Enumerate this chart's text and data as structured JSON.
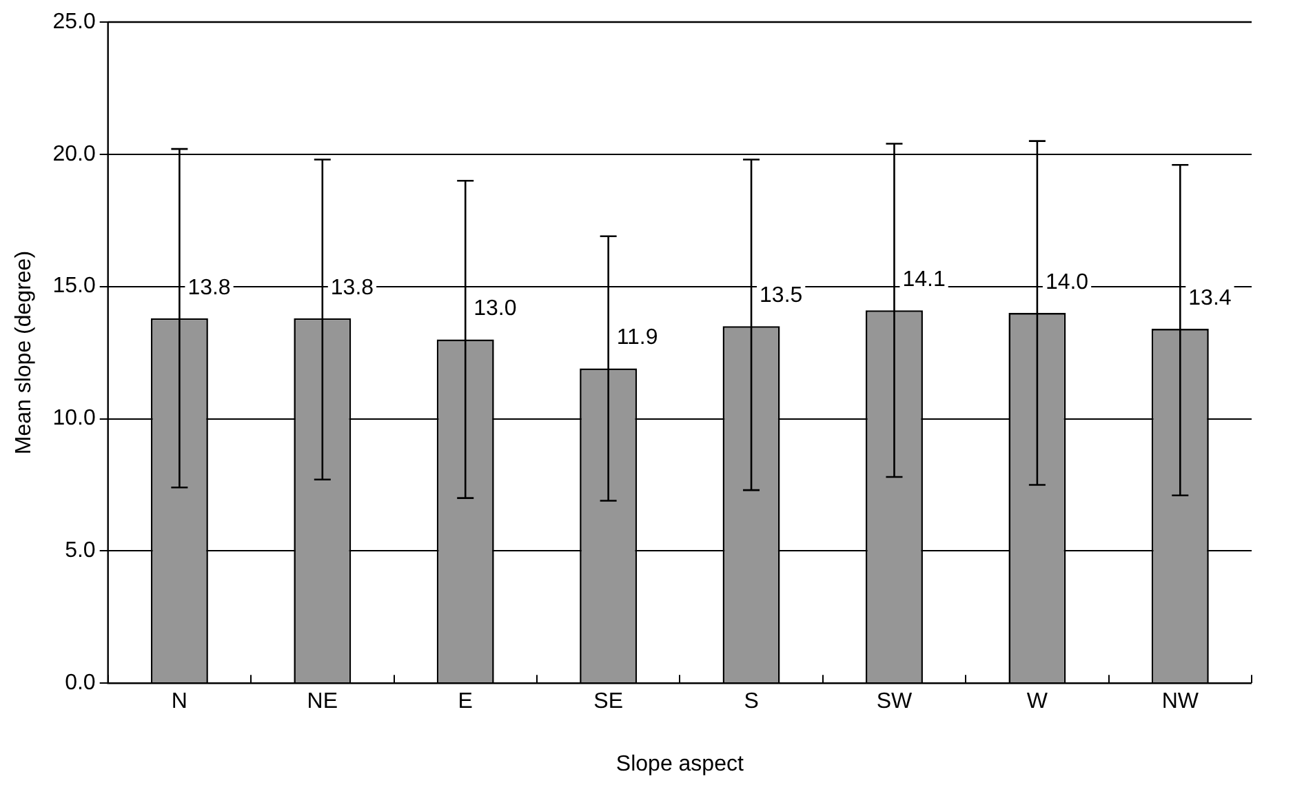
{
  "chart_data": {
    "type": "bar",
    "xlabel": "Slope aspect",
    "ylabel": "Mean slope (degree)",
    "categories": [
      "N",
      "NE",
      "E",
      "SE",
      "S",
      "SW",
      "W",
      "NW"
    ],
    "values": [
      13.8,
      13.8,
      13.0,
      11.9,
      13.5,
      14.1,
      14.0,
      13.4
    ],
    "value_labels": [
      "13.8",
      "13.8",
      "13.0",
      "11.9",
      "13.5",
      "14.1",
      "14.0",
      "13.4"
    ],
    "errors": [
      [
        7.4,
        20.2
      ],
      [
        7.7,
        19.8
      ],
      [
        7.0,
        19.0
      ],
      [
        6.9,
        16.9
      ],
      [
        7.3,
        19.8
      ],
      [
        7.8,
        20.4
      ],
      [
        7.5,
        20.5
      ],
      [
        7.1,
        19.6
      ]
    ],
    "color": "#969696",
    "ylim": [
      0,
      25
    ],
    "yticks": [
      {
        "value": 0,
        "label": "0.0"
      },
      {
        "value": 5,
        "label": "5.0"
      },
      {
        "value": 10,
        "label": "10.0"
      },
      {
        "value": 15,
        "label": "15.0"
      },
      {
        "value": 20,
        "label": "20.0"
      },
      {
        "value": 25,
        "label": "25.0"
      }
    ],
    "grid": "y",
    "legend": false
  }
}
